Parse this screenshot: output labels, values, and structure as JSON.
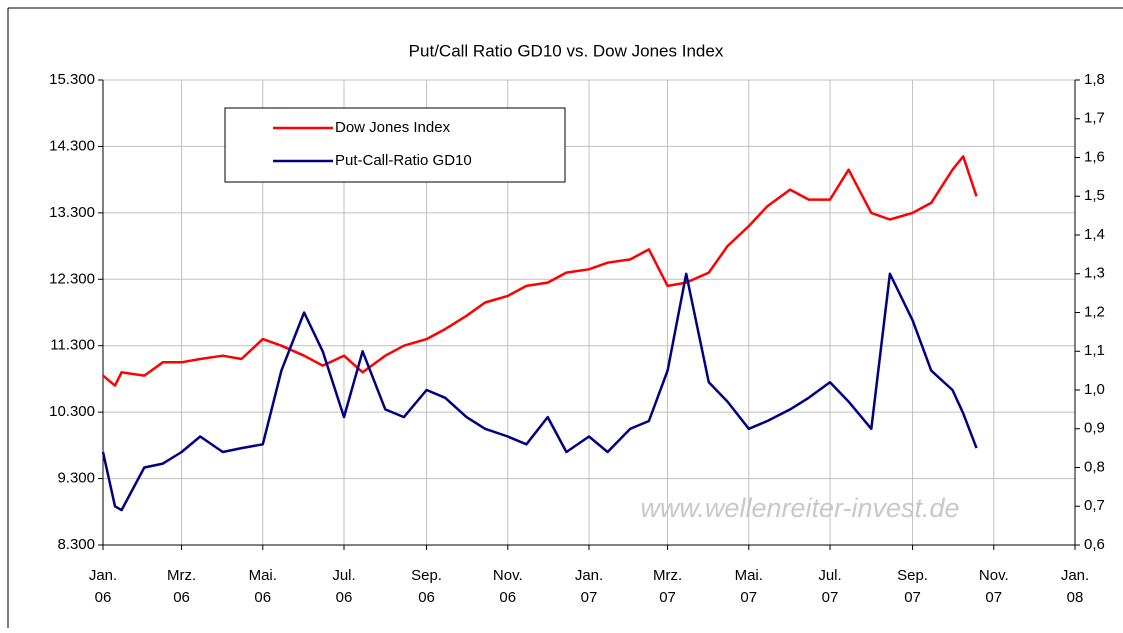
{
  "chart_data": {
    "type": "line",
    "title": "Put/Call Ratio GD10 vs. Dow Jones Index",
    "annotation": "www.wellenreiter-invest.de",
    "legend": "upper left",
    "grid": true,
    "x": [
      "2006-01-01",
      "2006-01-10",
      "2006-01-15",
      "2006-02-01",
      "2006-02-15",
      "2006-03-01",
      "2006-03-15",
      "2006-04-01",
      "2006-04-15",
      "2006-05-01",
      "2006-05-15",
      "2006-06-01",
      "2006-06-15",
      "2006-07-01",
      "2006-07-15",
      "2006-08-01",
      "2006-08-15",
      "2006-09-01",
      "2006-09-15",
      "2006-10-01",
      "2006-10-15",
      "2006-11-01",
      "2006-11-15",
      "2006-12-01",
      "2006-12-15",
      "2007-01-01",
      "2007-01-15",
      "2007-02-01",
      "2007-02-15",
      "2007-03-01",
      "2007-03-15",
      "2007-04-01",
      "2007-04-15",
      "2007-05-01",
      "2007-05-15",
      "2007-06-01",
      "2007-06-15",
      "2007-07-01",
      "2007-07-15",
      "2007-08-01",
      "2007-08-15",
      "2007-09-01",
      "2007-09-15",
      "2007-10-01",
      "2007-10-09",
      "2007-10-19"
    ],
    "series": [
      {
        "name": "Dow Jones Index",
        "color": "#ff0000",
        "axis": "y",
        "values": [
          10850,
          10700,
          10900,
          10850,
          11050,
          11050,
          11100,
          11150,
          11100,
          11400,
          11300,
          11150,
          11000,
          11150,
          10900,
          11150,
          11300,
          11400,
          11550,
          11750,
          11950,
          12050,
          12200,
          12250,
          12400,
          12450,
          12550,
          12600,
          12750,
          12200,
          12250,
          12400,
          12800,
          13100,
          13400,
          13650,
          13500,
          13500,
          13950,
          13300,
          13200,
          13300,
          13450,
          13950,
          14150,
          13550
        ]
      },
      {
        "name": "Put-Call-Ratio GD10",
        "color": "#000080",
        "axis": "y2",
        "values": [
          0.84,
          0.7,
          0.69,
          0.8,
          0.81,
          0.84,
          0.88,
          0.84,
          0.85,
          0.86,
          1.05,
          1.2,
          1.1,
          0.93,
          1.1,
          0.95,
          0.93,
          1.0,
          0.98,
          0.93,
          0.9,
          0.88,
          0.86,
          0.93,
          0.84,
          0.88,
          0.84,
          0.9,
          0.92,
          1.05,
          1.3,
          1.02,
          0.97,
          0.9,
          0.92,
          0.95,
          0.98,
          1.02,
          0.97,
          0.9,
          1.3,
          1.18,
          1.05,
          1.0,
          0.94,
          0.85
        ]
      }
    ],
    "xlim": [
      "2006-01-01",
      "2008-01-01"
    ],
    "xticks": [
      {
        "value": "2006-01-01",
        "label": "Jan.\n06"
      },
      {
        "value": "2006-03-01",
        "label": "Mrz.\n06"
      },
      {
        "value": "2006-05-01",
        "label": "Mai.\n06"
      },
      {
        "value": "2006-07-01",
        "label": "Jul.\n06"
      },
      {
        "value": "2006-09-01",
        "label": "Sep.\n06"
      },
      {
        "value": "2006-11-01",
        "label": "Nov.\n06"
      },
      {
        "value": "2007-01-01",
        "label": "Jan.\n07"
      },
      {
        "value": "2007-03-01",
        "label": "Mrz.\n07"
      },
      {
        "value": "2007-05-01",
        "label": "Mai.\n07"
      },
      {
        "value": "2007-07-01",
        "label": "Jul.\n07"
      },
      {
        "value": "2007-09-01",
        "label": "Sep.\n07"
      },
      {
        "value": "2007-11-01",
        "label": "Nov.\n07"
      },
      {
        "value": "2008-01-01",
        "label": "Jan.\n08"
      }
    ],
    "ylim": [
      8300,
      15300
    ],
    "yticks": [
      {
        "value": 8300,
        "label": "8.300"
      },
      {
        "value": 9300,
        "label": "9.300"
      },
      {
        "value": 10300,
        "label": "10.300"
      },
      {
        "value": 11300,
        "label": "11.300"
      },
      {
        "value": 12300,
        "label": "12.300"
      },
      {
        "value": 13300,
        "label": "13.300"
      },
      {
        "value": 14300,
        "label": "14.300"
      },
      {
        "value": 15300,
        "label": "15.300"
      }
    ],
    "y2lim": [
      0.6,
      1.8
    ],
    "y2ticks": [
      {
        "value": 0.6,
        "label": "0,6"
      },
      {
        "value": 0.7,
        "label": "0,7"
      },
      {
        "value": 0.8,
        "label": "0,8"
      },
      {
        "value": 0.9,
        "label": "0,9"
      },
      {
        "value": 1.0,
        "label": "1,0"
      },
      {
        "value": 1.1,
        "label": "1,1"
      },
      {
        "value": 1.2,
        "label": "1,2"
      },
      {
        "value": 1.3,
        "label": "1,3"
      },
      {
        "value": 1.4,
        "label": "1,4"
      },
      {
        "value": 1.5,
        "label": "1,5"
      },
      {
        "value": 1.6,
        "label": "1,6"
      },
      {
        "value": 1.7,
        "label": "1,7"
      },
      {
        "value": 1.8,
        "label": "1,8"
      }
    ]
  }
}
